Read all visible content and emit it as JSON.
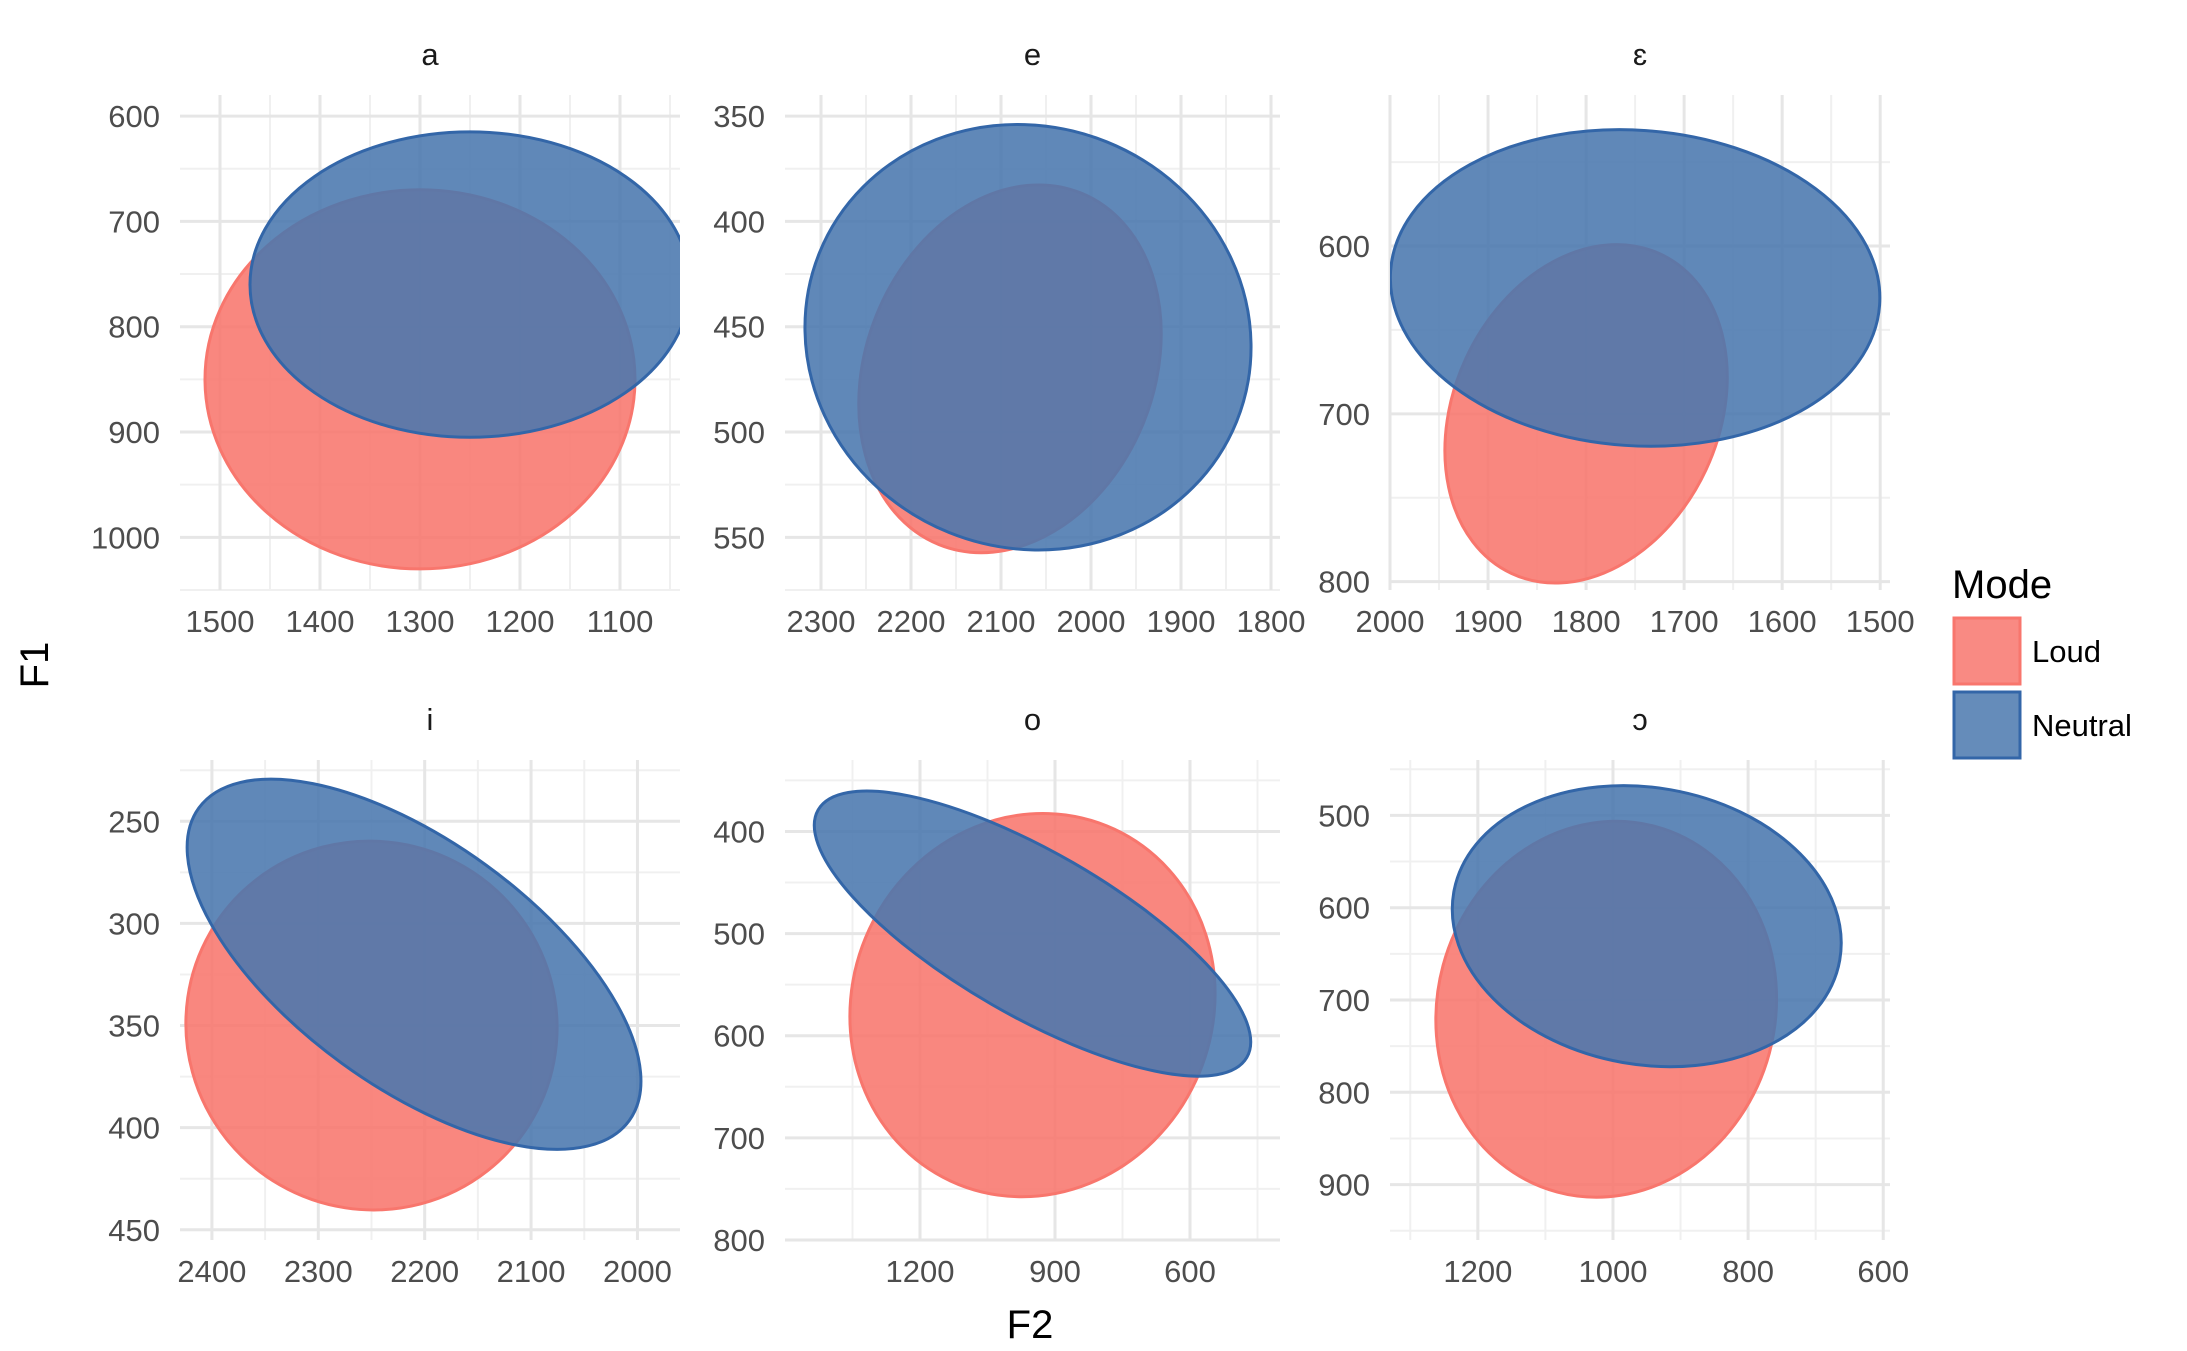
{
  "chart_data": {
    "type": "scatter",
    "geometry": "ellipse",
    "xlabel": "F2",
    "ylabel": "F1",
    "x_reversed": true,
    "y_reversed": true,
    "grid": true,
    "legend": {
      "title": "Mode",
      "position": "right",
      "entries": [
        {
          "name": "Loud",
          "fill": "#F8766D",
          "stroke": "#F8766D"
        },
        {
          "name": "Neutral",
          "fill": "#4A78AE",
          "stroke": "#3366A8"
        }
      ]
    },
    "colors": {
      "loud": "#F8766D",
      "neutral": "#4A78AE",
      "grid": "#e6e6e6"
    },
    "panels": [
      {
        "title": "a",
        "xlim": [
          1040,
          1540
        ],
        "ylim": [
          580,
          1050
        ],
        "xticks": [
          1500,
          1400,
          1300,
          1200,
          1100
        ],
        "yticks": [
          600,
          700,
          800,
          900,
          1000
        ],
        "series": [
          {
            "name": "Loud",
            "center": [
              1300,
              850
            ],
            "rx": 215,
            "ry": 180,
            "angle": 0
          },
          {
            "name": "Neutral",
            "center": [
              1250,
              760
            ],
            "rx": 220,
            "ry": 145,
            "angle": 0
          }
        ]
      },
      {
        "title": "e",
        "xlim": [
          1790,
          2340
        ],
        "ylim": [
          340,
          575
        ],
        "xticks": [
          2300,
          2200,
          2100,
          2000,
          1900,
          1800
        ],
        "yticks": [
          350,
          400,
          450,
          500,
          550
        ],
        "series": [
          {
            "name": "Loud",
            "center": [
              2090,
              470
            ],
            "rx": 160,
            "ry": 90,
            "angle": 22
          },
          {
            "name": "Neutral",
            "center": [
              2070,
              455
            ],
            "rx": 250,
            "ry": 100,
            "angle": 22
          }
        ]
      },
      {
        "title": "ɛ",
        "xlim": [
          1490,
          2000
        ],
        "ylim": [
          510,
          805
        ],
        "xticks": [
          2000,
          1900,
          1800,
          1700,
          1600,
          1500
        ],
        "yticks": [
          600,
          700,
          800
        ],
        "series": [
          {
            "name": "Loud",
            "center": [
              1800,
              700
            ],
            "rx": 135,
            "ry": 105,
            "angle": 25
          },
          {
            "name": "Neutral",
            "center": [
              1750,
              625
            ],
            "rx": 250,
            "ry": 94,
            "angle": 4
          }
        ]
      },
      {
        "title": "i",
        "xlim": [
          1960,
          2430
        ],
        "ylim": [
          220,
          455
        ],
        "xticks": [
          2400,
          2300,
          2200,
          2100,
          2000
        ],
        "yticks": [
          250,
          300,
          350,
          400,
          450
        ],
        "series": [
          {
            "name": "Loud",
            "center": [
              2250,
              350
            ],
            "rx": 175,
            "ry": 90,
            "angle": 30
          },
          {
            "name": "Neutral",
            "center": [
              2210,
              320
            ],
            "rx": 250,
            "ry": 60,
            "angle": 36
          }
        ]
      },
      {
        "title": "o",
        "xlim": [
          400,
          1500
        ],
        "ylim": [
          330,
          800
        ],
        "xticks": [
          1200,
          900,
          600
        ],
        "yticks": [
          400,
          500,
          600,
          700,
          800
        ],
        "series": [
          {
            "name": "Loud",
            "center": [
              950,
              570
            ],
            "rx": 400,
            "ry": 190,
            "angle": 25
          },
          {
            "name": "Neutral",
            "center": [
              950,
              500
            ],
            "rx": 550,
            "ry": 80,
            "angle": 30
          }
        ]
      },
      {
        "title": "ɔ",
        "xlim": [
          590,
          1330
        ],
        "ylim": [
          440,
          960
        ],
        "xticks": [
          1200,
          1000,
          800,
          600
        ],
        "yticks": [
          500,
          600,
          700,
          800,
          900
        ],
        "series": [
          {
            "name": "Loud",
            "center": [
              1010,
              710
            ],
            "rx": 250,
            "ry": 205,
            "angle": 15
          },
          {
            "name": "Neutral",
            "center": [
              950,
              620
            ],
            "rx": 290,
            "ry": 150,
            "angle": 10
          }
        ]
      }
    ]
  }
}
